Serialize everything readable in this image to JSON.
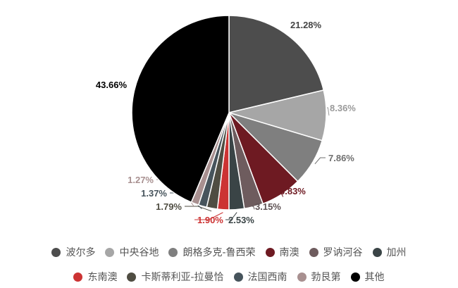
{
  "chart_data": {
    "type": "pie",
    "start": "top",
    "direction": "clockwise",
    "legend_position": "bottom",
    "slices": [
      {
        "name": "波尔多",
        "value": 21.28,
        "label": "21.28%",
        "color": "#4d4d4d",
        "label_color": "#444444"
      },
      {
        "name": "中央谷地",
        "value": 8.36,
        "label": "8.36%",
        "color": "#a6a6a6",
        "label_color": "#9a9a9a"
      },
      {
        "name": "朗格多克-鲁西荣",
        "value": 7.86,
        "label": "7.86%",
        "color": "#7f7f7f",
        "label_color": "#6f6f6f"
      },
      {
        "name": "南澳",
        "value": 6.83,
        "label": "6.83%",
        "color": "#6e1a22",
        "label_color": "#6e1a22"
      },
      {
        "name": "罗讷河谷",
        "value": 3.15,
        "label": "3.15%",
        "color": "#6e5c5e",
        "label_color": "#5e5254"
      },
      {
        "name": "加州",
        "value": 2.53,
        "label": "2.53%",
        "color": "#3a4446",
        "label_color": "#3a4446"
      },
      {
        "name": "东南澳",
        "value": 1.9,
        "label": "1.90%",
        "color": "#cc3333",
        "label_color": "#cc3333"
      },
      {
        "name": "卡斯蒂利亚-拉曼恰",
        "value": 1.79,
        "label": "1.79%",
        "color": "#4f4d42",
        "label_color": "#4f4d42"
      },
      {
        "name": "法国西南",
        "value": 1.37,
        "label": "1.37%",
        "color": "#47545c",
        "label_color": "#47545c"
      },
      {
        "name": "勃艮第",
        "value": 1.27,
        "label": "1.27%",
        "color": "#a89090",
        "label_color": "#a89090"
      },
      {
        "name": "其他",
        "value": 43.66,
        "label": "43.66%",
        "color": "#000000",
        "label_color": "#000000"
      }
    ]
  }
}
